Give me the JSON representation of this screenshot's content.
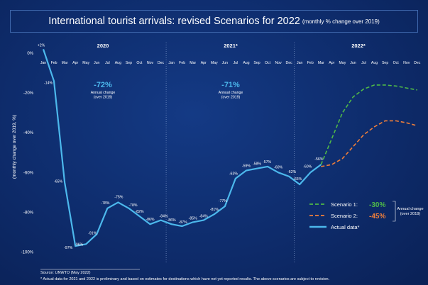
{
  "title": {
    "main": "International tourist arrivals: revised Scenarios for 2022",
    "sub": "(monthly % change over 2019)"
  },
  "chart_data": {
    "type": "line",
    "ylabel": "(monthly change over 2019, %)",
    "ylim": [
      -100,
      2
    ],
    "yticks": [
      0,
      -20,
      -40,
      -60,
      -80,
      -100
    ],
    "ytick_labels": [
      "0%",
      "-20%",
      "-40%",
      "-60%",
      "-80%",
      "-100%"
    ],
    "months": [
      "Jan",
      "Feb",
      "Mar",
      "Apr",
      "May",
      "Jun",
      "Jul",
      "Aug",
      "Sep",
      "Oct",
      "Nov",
      "Dec"
    ],
    "years": [
      {
        "label": "2020",
        "annual_value": "-72%",
        "annual_note": "Annual change\n(over 2019)"
      },
      {
        "label": "2021*",
        "annual_value": "-71%",
        "annual_note": "Annual change\n(over 2019)"
      },
      {
        "label": "2022*"
      }
    ],
    "series": [
      {
        "name": "Actual data*",
        "style": "solid",
        "color": "#4cb8ec",
        "x": [
          0,
          1,
          2,
          3,
          4,
          5,
          6,
          7,
          8,
          9,
          10,
          11,
          12,
          13,
          14,
          15,
          16,
          17,
          18,
          19,
          20,
          21,
          22,
          23,
          24,
          25,
          26
        ],
        "values": [
          2,
          -14,
          -65,
          -97,
          -96,
          -91,
          -78,
          -75,
          -78,
          -82,
          -86,
          -84,
          -86,
          -87,
          -85,
          -84,
          -81,
          -77,
          -63,
          -59,
          -58,
          -57,
          -60,
          -62,
          -66,
          -60,
          -56
        ],
        "labels": [
          "+2%",
          "-14%",
          "-65%",
          "-97%",
          "-96%",
          "-91%",
          "-78%",
          "-75%",
          "-78%",
          "-82%",
          "-86%",
          "-84%",
          "-86%",
          "-87%",
          "-85%",
          "-84%",
          "-81%",
          "-77%",
          "-63%",
          "-59%",
          "-58%",
          "-57%",
          "-60%",
          "-62%",
          "-66%",
          "-60%",
          "-56%"
        ]
      },
      {
        "name": "Scenario 1:",
        "annual_value": "-30%",
        "style": "dashed",
        "color": "#4fb848",
        "x": [
          26,
          27,
          28,
          29,
          30,
          31,
          32,
          33,
          34,
          35
        ],
        "values": [
          -56,
          -43,
          -30,
          -22,
          -18,
          -16,
          -16,
          -16.5,
          -17.5,
          -18.5
        ]
      },
      {
        "name": "Scenario 2:",
        "annual_value": "-45%",
        "style": "dashed",
        "color": "#f07f3a",
        "x": [
          26,
          27,
          28,
          29,
          30,
          31,
          32,
          33,
          34,
          35
        ],
        "values": [
          -57,
          -56,
          -53,
          -47,
          -41,
          -37,
          -34,
          -34,
          -35,
          -36.5
        ]
      }
    ],
    "legend": {
      "placement": "bottom-right",
      "annual_note": "Annual change\n(over 2019)"
    },
    "grid": false
  },
  "footer": {
    "source": "Source: UNWTO (May 2022)",
    "note": "* Actual data for 2021 and 2022 is preliminary and based on estimates for destinations which have not yet reported results. The above scenarios are subject to revision."
  }
}
